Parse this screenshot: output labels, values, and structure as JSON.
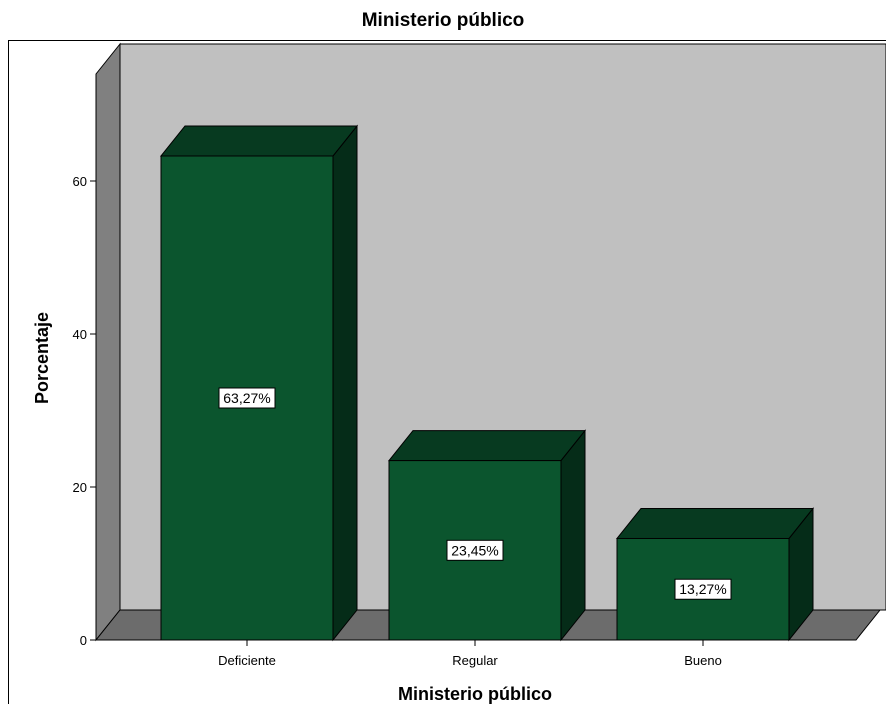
{
  "chart_data": {
    "type": "bar",
    "title": "Ministerio público",
    "xlabel": "Ministerio público",
    "ylabel": "Porcentaje",
    "categories": [
      "Deficiente",
      "Regular",
      "Bueno"
    ],
    "values": [
      63.27,
      23.45,
      13.27
    ],
    "data_labels": [
      "63,27%",
      "23,45%",
      "13,27%"
    ],
    "ylim": [
      0,
      75
    ],
    "yticks": [
      0,
      20,
      40,
      60
    ],
    "grid": false,
    "style": "3d",
    "colors": {
      "bar_front": "#0b552e",
      "bar_top": "#073a20",
      "bar_side": "#052c18",
      "back_wall": "#c0c0c0",
      "floor": "#6c6c6c",
      "left_wall": "#808080"
    }
  }
}
